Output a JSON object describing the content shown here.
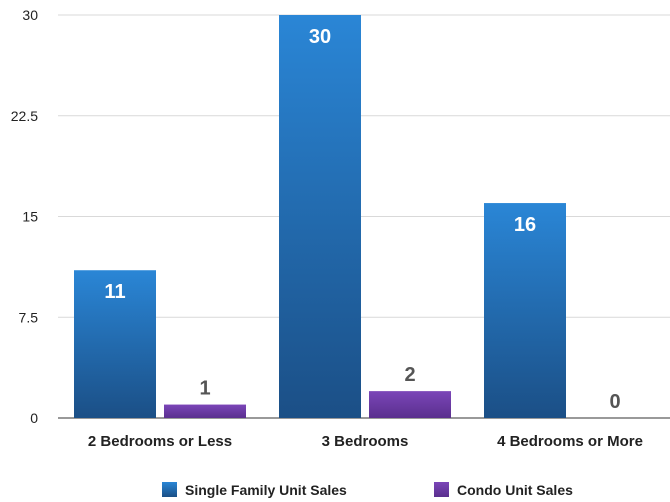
{
  "chart_data": {
    "type": "bar",
    "title": "",
    "xlabel": "",
    "ylabel": "",
    "categories": [
      "2 Bedrooms or Less",
      "3 Bedrooms",
      "4 Bedrooms or More"
    ],
    "series": [
      {
        "name": "Single Family Unit Sales",
        "values": [
          11,
          30,
          16
        ],
        "color": "#1f6fb5"
      },
      {
        "name": "Condo Unit Sales",
        "values": [
          1,
          2,
          0
        ],
        "color": "#6f3fa6"
      }
    ],
    "ylim": [
      0,
      30
    ],
    "yticks": [
      "0",
      "7.5",
      "15",
      "22.5",
      "30"
    ],
    "grid": true,
    "legend_position": "bottom"
  }
}
